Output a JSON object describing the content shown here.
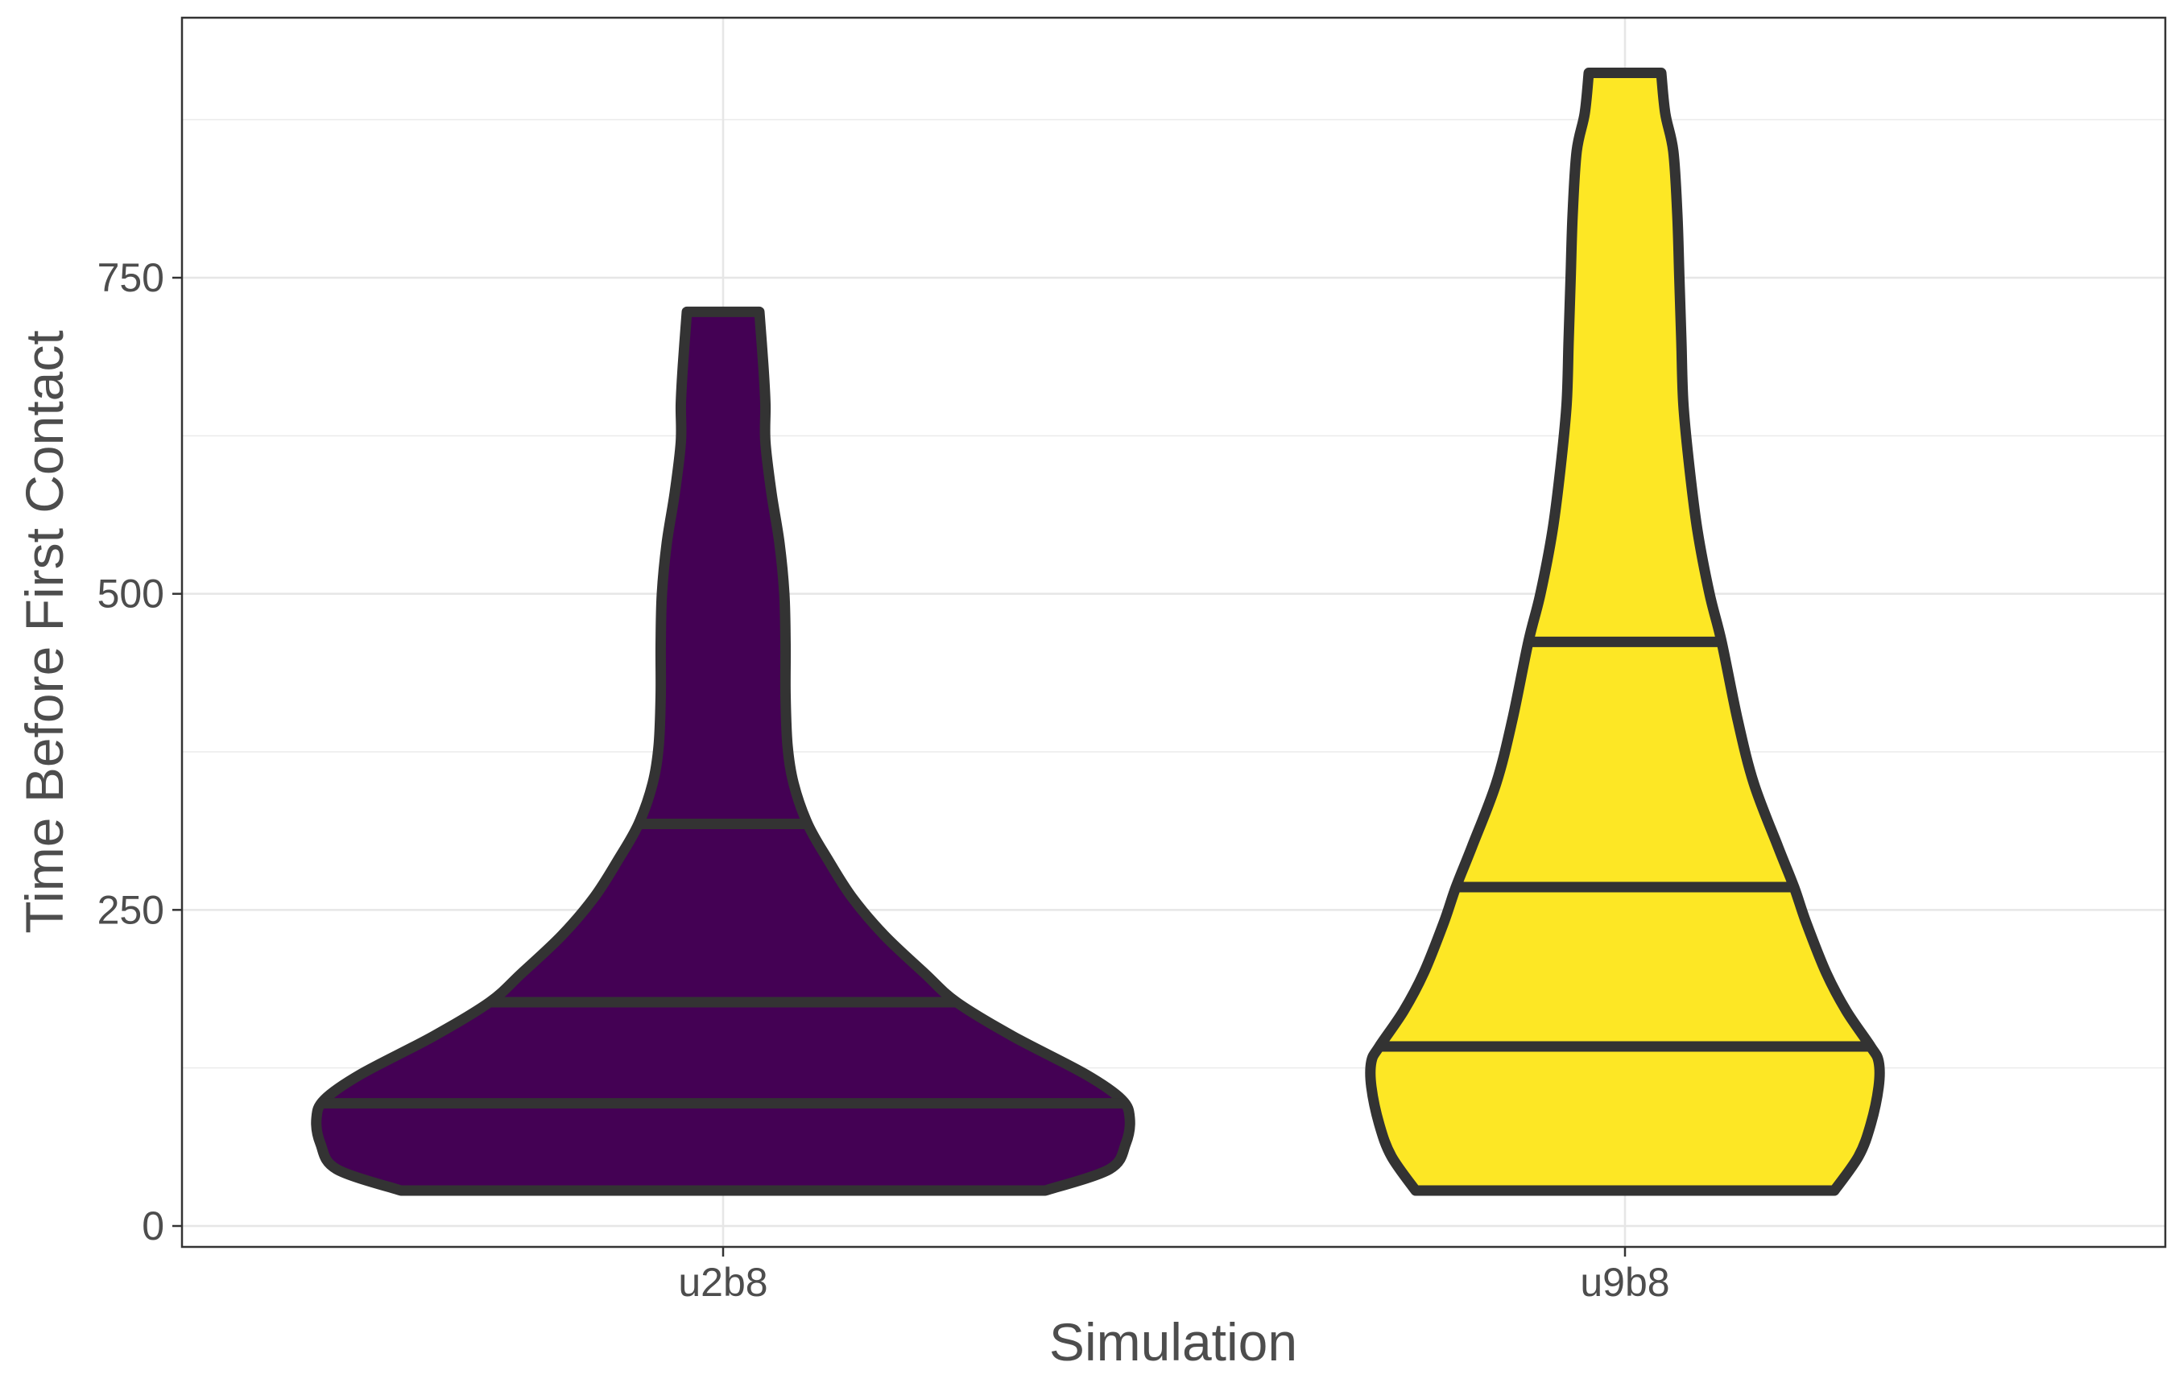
{
  "chart_data": {
    "type": "violin",
    "xlabel": "Simulation",
    "ylabel": "Time Before First Contact",
    "categories": [
      "u2b8",
      "u9b8"
    ],
    "ylim": [
      -25,
      945
    ],
    "yticks": [
      0,
      250,
      500,
      750
    ],
    "grid": true,
    "legend": "none",
    "colors": {
      "u2b8": "#440154",
      "u9b8": "#FDE725",
      "outline": "#333333"
    },
    "violins": [
      {
        "category": "u2b8",
        "min": 28,
        "max": 723,
        "quantiles": [
          97,
          177,
          318
        ],
        "density": [
          [
            28,
            0.8
          ],
          [
            45,
            0.96
          ],
          [
            65,
            1.0
          ],
          [
            85,
            1.01
          ],
          [
            100,
            0.99
          ],
          [
            120,
            0.9
          ],
          [
            150,
            0.72
          ],
          [
            177,
            0.58
          ],
          [
            200,
            0.5
          ],
          [
            230,
            0.4
          ],
          [
            260,
            0.32
          ],
          [
            290,
            0.26
          ],
          [
            318,
            0.21
          ],
          [
            350,
            0.175
          ],
          [
            380,
            0.16
          ],
          [
            420,
            0.155
          ],
          [
            460,
            0.155
          ],
          [
            500,
            0.152
          ],
          [
            540,
            0.14
          ],
          [
            580,
            0.12
          ],
          [
            620,
            0.105
          ],
          [
            650,
            0.105
          ],
          [
            680,
            0.1
          ],
          [
            723,
            0.09
          ]
        ]
      },
      {
        "category": "u9b8",
        "min": 28,
        "max": 912,
        "quantiles": [
          142,
          268,
          462
        ],
        "density": [
          [
            28,
            0.52
          ],
          [
            55,
            0.58
          ],
          [
            80,
            0.61
          ],
          [
            110,
            0.63
          ],
          [
            130,
            0.63
          ],
          [
            142,
            0.61
          ],
          [
            170,
            0.55
          ],
          [
            200,
            0.5
          ],
          [
            240,
            0.45
          ],
          [
            268,
            0.42
          ],
          [
            300,
            0.38
          ],
          [
            350,
            0.32
          ],
          [
            400,
            0.28
          ],
          [
            462,
            0.24
          ],
          [
            500,
            0.21
          ],
          [
            550,
            0.18
          ],
          [
            600,
            0.16
          ],
          [
            650,
            0.145
          ],
          [
            700,
            0.14
          ],
          [
            750,
            0.135
          ],
          [
            800,
            0.13
          ],
          [
            850,
            0.12
          ],
          [
            880,
            0.1
          ],
          [
            912,
            0.09
          ]
        ]
      }
    ]
  }
}
